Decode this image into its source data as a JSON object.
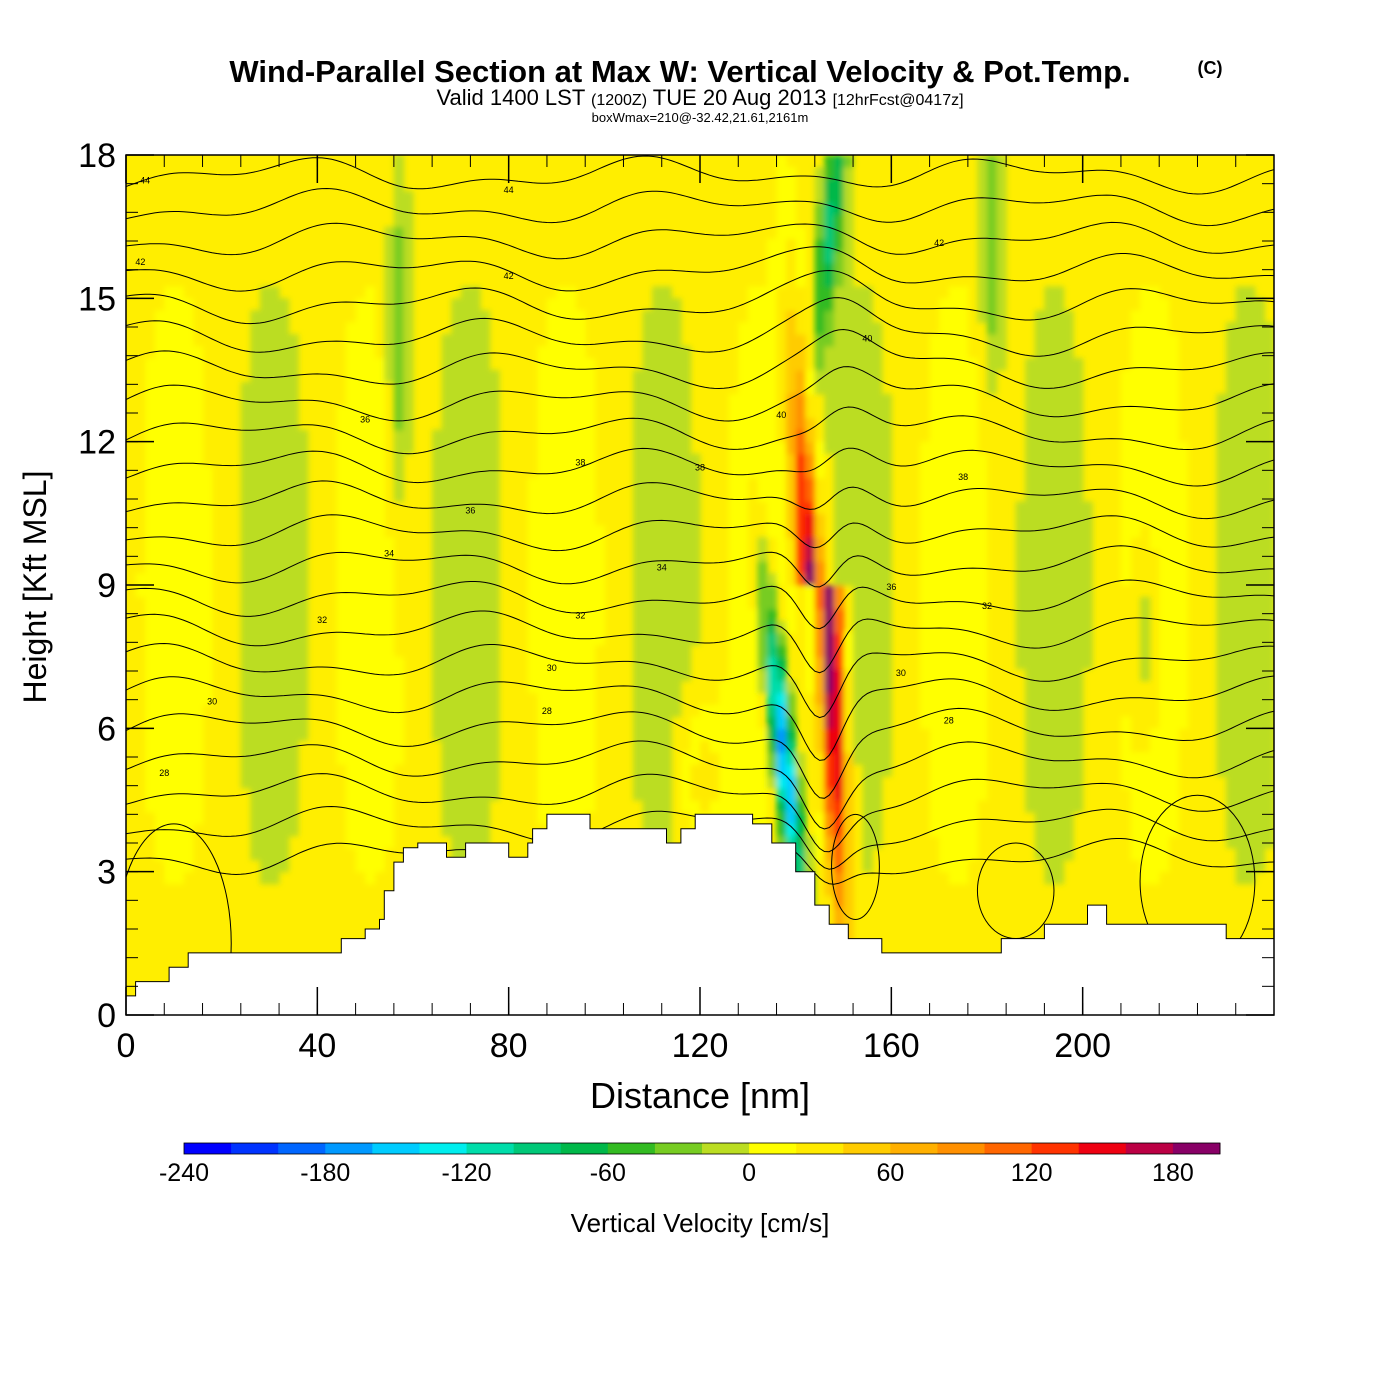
{
  "chart_data": {
    "type": "heatmap",
    "title": "Wind-Parallel Section at Max W: Vertical Velocity & Pot.Temp.",
    "title_mark": "(C)",
    "subtitle": {
      "valid": "Valid 1400 LST",
      "utc": "(1200Z)",
      "date": "TUE 20 Aug 2013",
      "forecast": "[12hrFcst@0417z]"
    },
    "subtitle2": "boxWmax=210@-32.42,21.61,2161m",
    "xlabel": "Distance [nm]",
    "ylabel": "Height [Kft MSL]",
    "xlim": [
      0,
      240
    ],
    "ylim": [
      0,
      18
    ],
    "x_ticks": [
      "0",
      "40",
      "80",
      "120",
      "160",
      "200"
    ],
    "y_ticks": [
      "0",
      "3",
      "6",
      "9",
      "12",
      "15",
      "18"
    ],
    "colorbar": {
      "label": "Vertical Velocity [cm/s]",
      "range": [
        -240,
        200
      ],
      "step": 20,
      "tick_labels": [
        "-240",
        "-180",
        "-120",
        "-60",
        "0",
        "60",
        "120",
        "180"
      ],
      "colors": [
        "#0000ff",
        "#0033ff",
        "#0066ff",
        "#0099ff",
        "#00ccff",
        "#00eeee",
        "#00ddaa",
        "#00c878",
        "#00b84a",
        "#33bb22",
        "#77cc22",
        "#bbdd22",
        "#ffff00",
        "#ffea00",
        "#ffcc00",
        "#ffb000",
        "#ff9000",
        "#ff6600",
        "#ff3300",
        "#ee0011",
        "#bb0044",
        "#880066"
      ]
    },
    "field_features": {
      "downdraft": {
        "x": 138,
        "z": 5,
        "w": -180
      },
      "updraft": {
        "x": 147,
        "z": 7,
        "w": 210
      },
      "background_w": 0
    },
    "isentropes": {
      "labels": [
        "28",
        "30",
        "32",
        "34",
        "36",
        "38",
        "40",
        "42",
        "44"
      ]
    },
    "terrain": [
      [
        0,
        0.4
      ],
      [
        2,
        0.4
      ],
      [
        2,
        0.7
      ],
      [
        9,
        0.7
      ],
      [
        9,
        1.0
      ],
      [
        13,
        1.0
      ],
      [
        13,
        1.3
      ],
      [
        45,
        1.3
      ],
      [
        45,
        1.6
      ],
      [
        50,
        1.6
      ],
      [
        50,
        1.8
      ],
      [
        53,
        1.8
      ],
      [
        53,
        2.0
      ],
      [
        54,
        2.0
      ],
      [
        54,
        2.6
      ],
      [
        56,
        2.6
      ],
      [
        56,
        3.2
      ],
      [
        58,
        3.2
      ],
      [
        58,
        3.5
      ],
      [
        61,
        3.5
      ],
      [
        61,
        3.6
      ],
      [
        67,
        3.6
      ],
      [
        67,
        3.3
      ],
      [
        71,
        3.3
      ],
      [
        71,
        3.6
      ],
      [
        80,
        3.6
      ],
      [
        80,
        3.3
      ],
      [
        84,
        3.3
      ],
      [
        84,
        3.6
      ],
      [
        85,
        3.6
      ],
      [
        85,
        3.9
      ],
      [
        88,
        3.9
      ],
      [
        88,
        4.2
      ],
      [
        97,
        4.2
      ],
      [
        97,
        3.9
      ],
      [
        113,
        3.9
      ],
      [
        113,
        3.6
      ],
      [
        116,
        3.6
      ],
      [
        116,
        3.9
      ],
      [
        119,
        3.9
      ],
      [
        119,
        4.2
      ],
      [
        131,
        4.2
      ],
      [
        131,
        4.0
      ],
      [
        135,
        4.0
      ],
      [
        135,
        3.6
      ],
      [
        140,
        3.6
      ],
      [
        140,
        3.0
      ],
      [
        144,
        3.0
      ],
      [
        144,
        2.3
      ],
      [
        147,
        2.3
      ],
      [
        147,
        1.9
      ],
      [
        151,
        1.9
      ],
      [
        151,
        1.6
      ],
      [
        158,
        1.6
      ],
      [
        158,
        1.3
      ],
      [
        183,
        1.3
      ],
      [
        183,
        1.6
      ],
      [
        192,
        1.6
      ],
      [
        192,
        1.9
      ],
      [
        201,
        1.9
      ],
      [
        201,
        2.3
      ],
      [
        205,
        2.3
      ],
      [
        205,
        1.9
      ],
      [
        230,
        1.9
      ],
      [
        230,
        1.6
      ],
      [
        240,
        1.6
      ]
    ]
  }
}
